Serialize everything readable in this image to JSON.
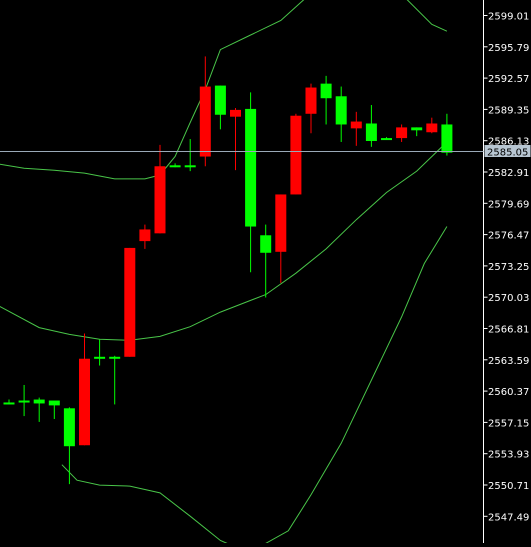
{
  "chart_data": {
    "type": "candlestick",
    "title": "",
    "grid": false,
    "ylim": [
      2545.4,
      2601.8
    ],
    "y_ticks": [
      "2599.01",
      "2595.79",
      "2592.57",
      "2589.35",
      "2586.13",
      "2582.91",
      "2579.69",
      "2576.47",
      "2573.25",
      "2570.03",
      "2566.81",
      "2563.59",
      "2560.37",
      "2557.15",
      "2553.93",
      "2550.71",
      "2547.49"
    ],
    "current_price_label": "2585.05",
    "current_price": 2585.05,
    "colors": {
      "background": "#000000",
      "bull": "#00ff00",
      "bear": "#ff0000",
      "band": "#49c549",
      "price_line": "#9aa9b8",
      "axis_text": "#ffffff",
      "price_label_bg": "#b8c6d2"
    },
    "candles": [
      {
        "o": 2559.2,
        "h": 2559.5,
        "l": 2559.0,
        "c": 2559.2
      },
      {
        "o": 2559.2,
        "h": 2561.0,
        "l": 2557.8,
        "c": 2559.4
      },
      {
        "o": 2559.1,
        "h": 2559.7,
        "l": 2557.2,
        "c": 2559.5
      },
      {
        "o": 2558.9,
        "h": 2559.3,
        "l": 2557.5,
        "c": 2559.4
      },
      {
        "o": 2554.7,
        "h": 2558.7,
        "l": 2550.8,
        "c": 2558.6
      },
      {
        "o": 2563.7,
        "h": 2566.3,
        "l": 2554.8,
        "c": 2554.8
      },
      {
        "o": 2563.8,
        "h": 2565.7,
        "l": 2563.0,
        "c": 2563.9
      },
      {
        "o": 2563.9,
        "h": 2564.0,
        "l": 2559.0,
        "c": 2563.9
      },
      {
        "o": 2575.1,
        "h": 2575.1,
        "l": 2563.9,
        "c": 2563.9
      },
      {
        "o": 2577.0,
        "h": 2577.5,
        "l": 2575.0,
        "c": 2575.8
      },
      {
        "o": 2583.5,
        "h": 2585.7,
        "l": 2576.6,
        "c": 2576.6
      },
      {
        "o": 2583.6,
        "h": 2583.8,
        "l": 2583.4,
        "c": 2583.6
      },
      {
        "o": 2583.6,
        "h": 2586.3,
        "l": 2583.0,
        "c": 2583.6
      },
      {
        "o": 2591.7,
        "h": 2594.8,
        "l": 2583.5,
        "c": 2584.5
      },
      {
        "o": 2588.8,
        "h": 2591.8,
        "l": 2587.3,
        "c": 2591.8
      },
      {
        "o": 2589.3,
        "h": 2589.5,
        "l": 2583.1,
        "c": 2588.6
      },
      {
        "o": 2577.3,
        "h": 2591.1,
        "l": 2572.6,
        "c": 2589.4
      },
      {
        "o": 2574.6,
        "h": 2577.5,
        "l": 2570.0,
        "c": 2576.4
      },
      {
        "o": 2580.6,
        "h": 2580.6,
        "l": 2571.5,
        "c": 2574.7
      },
      {
        "o": 2588.7,
        "h": 2588.9,
        "l": 2580.6,
        "c": 2580.6
      },
      {
        "o": 2591.6,
        "h": 2592.0,
        "l": 2586.9,
        "c": 2588.9
      },
      {
        "o": 2590.5,
        "h": 2592.8,
        "l": 2587.8,
        "c": 2592.0
      },
      {
        "o": 2587.8,
        "h": 2591.7,
        "l": 2586.0,
        "c": 2590.7
      },
      {
        "o": 2588.1,
        "h": 2589.1,
        "l": 2585.6,
        "c": 2587.4
      },
      {
        "o": 2586.1,
        "h": 2589.8,
        "l": 2585.5,
        "c": 2587.9
      },
      {
        "o": 2586.4,
        "h": 2586.5,
        "l": 2586.3,
        "c": 2586.4
      },
      {
        "o": 2587.5,
        "h": 2587.8,
        "l": 2586.0,
        "c": 2586.4
      },
      {
        "o": 2587.2,
        "h": 2587.5,
        "l": 2586.6,
        "c": 2587.5
      },
      {
        "o": 2587.9,
        "h": 2588.5,
        "l": 2586.9,
        "c": 2587.0
      },
      {
        "o": 2584.9,
        "h": 2588.9,
        "l": 2584.6,
        "c": 2587.8
      }
    ],
    "band_upper": [
      {
        "x": -1.0,
        "y": 2583.8
      },
      {
        "x": 1.0,
        "y": 2583.3
      },
      {
        "x": 3.0,
        "y": 2583.1
      },
      {
        "x": 5.0,
        "y": 2582.8
      },
      {
        "x": 7.0,
        "y": 2582.2
      },
      {
        "x": 9.0,
        "y": 2582.2
      },
      {
        "x": 10.0,
        "y": 2582.6
      },
      {
        "x": 11.0,
        "y": 2584.5
      },
      {
        "x": 12.0,
        "y": 2588.0
      },
      {
        "x": 13.0,
        "y": 2591.4
      },
      {
        "x": 14.0,
        "y": 2595.5
      },
      {
        "x": 16.0,
        "y": 2597.0
      },
      {
        "x": 18.0,
        "y": 2598.5
      },
      {
        "x": 20.0,
        "y": 2601.3
      },
      {
        "x": 23.0,
        "y": 2603.5
      },
      {
        "x": 26.0,
        "y": 2601.2
      },
      {
        "x": 28.0,
        "y": 2598.1
      },
      {
        "x": 29.0,
        "y": 2597.4
      }
    ],
    "band_lower": [
      {
        "x": -1.0,
        "y": 2569.4
      },
      {
        "x": 2.0,
        "y": 2566.9
      },
      {
        "x": 4.0,
        "y": 2566.2
      },
      {
        "x": 6.0,
        "y": 2565.7
      },
      {
        "x": 8.0,
        "y": 2565.6
      },
      {
        "x": 10.0,
        "y": 2566.0
      },
      {
        "x": 12.0,
        "y": 2567.0
      },
      {
        "x": 14.0,
        "y": 2568.5
      },
      {
        "x": 16.0,
        "y": 2569.7
      },
      {
        "x": 17.0,
        "y": 2570.3
      },
      {
        "x": 19.0,
        "y": 2572.5
      },
      {
        "x": 21.0,
        "y": 2575.0
      },
      {
        "x": 23.0,
        "y": 2578.0
      },
      {
        "x": 25.0,
        "y": 2580.8
      },
      {
        "x": 27.0,
        "y": 2583.0
      },
      {
        "x": 29.0,
        "y": 2586.0
      }
    ],
    "band_lowest": [
      {
        "x": 3.5,
        "y": 2552.8
      },
      {
        "x": 4.5,
        "y": 2551.2
      },
      {
        "x": 6.0,
        "y": 2550.7
      },
      {
        "x": 8.0,
        "y": 2550.6
      },
      {
        "x": 10.0,
        "y": 2549.9
      },
      {
        "x": 12.0,
        "y": 2547.5
      },
      {
        "x": 14.0,
        "y": 2545.0
      },
      {
        "x": 15.5,
        "y": 2544.0
      },
      {
        "x": 17.0,
        "y": 2544.7
      },
      {
        "x": 18.5,
        "y": 2546.0
      },
      {
        "x": 20.0,
        "y": 2549.7
      },
      {
        "x": 22.0,
        "y": 2555.0
      },
      {
        "x": 24.0,
        "y": 2561.5
      },
      {
        "x": 26.0,
        "y": 2568.0
      },
      {
        "x": 27.5,
        "y": 2573.5
      },
      {
        "x": 29.0,
        "y": 2577.3
      }
    ]
  }
}
